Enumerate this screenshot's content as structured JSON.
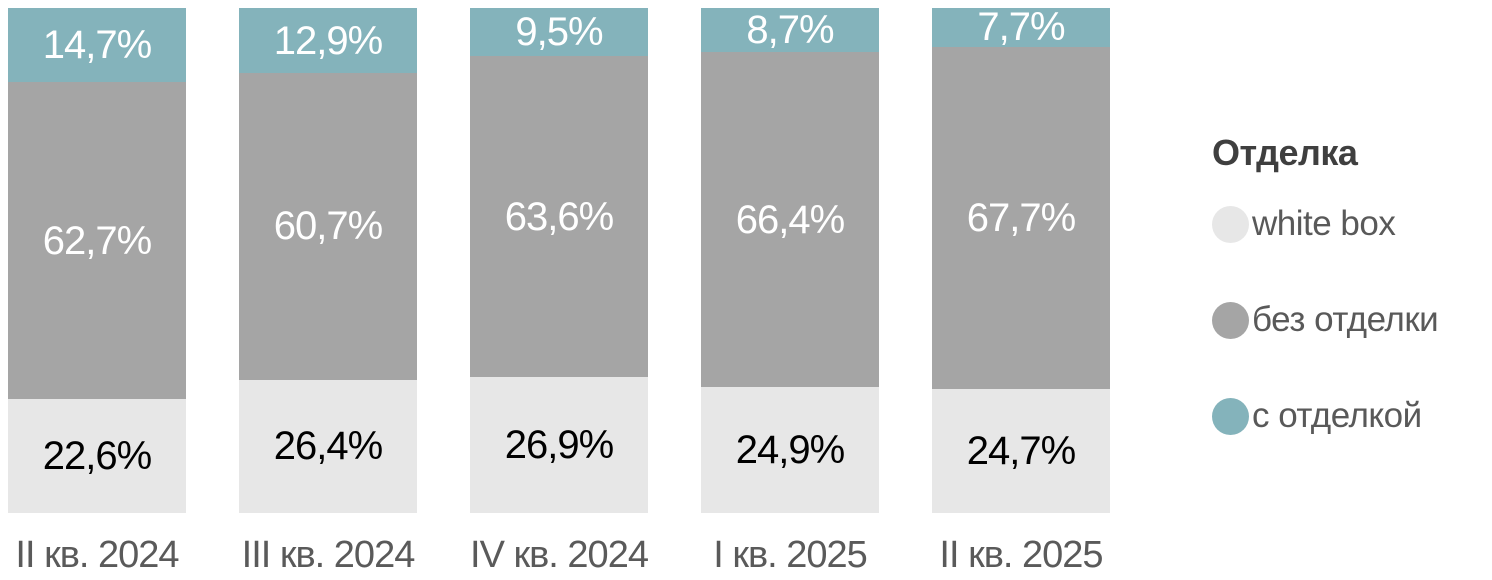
{
  "chart_data": {
    "type": "bar",
    "variant": "stacked-100",
    "orientation": "vertical",
    "background": "#FFFFFF",
    "categories": [
      "II кв. 2024",
      "III кв. 2024",
      "IV кв. 2024",
      "I кв. 2025",
      "II кв. 2025"
    ],
    "series": [
      {
        "name": "white box",
        "key": "white-box",
        "color": "#E7E7E7",
        "label_color": "#000000",
        "values": [
          22.6,
          26.4,
          26.9,
          24.9,
          24.7
        ],
        "labels": [
          "22,6%",
          "26,4%",
          "26,9%",
          "24,9%",
          "24,7%"
        ]
      },
      {
        "name": "без отделки",
        "key": "bez-otdelki",
        "color": "#A5A5A5",
        "label_color": "#FFFFFF",
        "values": [
          62.7,
          60.7,
          63.6,
          66.4,
          67.7
        ],
        "labels": [
          "62,7%",
          "60,7%",
          "63,6%",
          "66,4%",
          "67,7%"
        ]
      },
      {
        "name": "с отделкой",
        "key": "s-otdelkoy",
        "color": "#84B3BB",
        "label_color": "#FFFFFF",
        "values": [
          14.7,
          12.9,
          9.5,
          8.7,
          7.7
        ],
        "labels": [
          "14,7%",
          "12,9%",
          "9,5%",
          "8,7%",
          "7,7%"
        ]
      }
    ],
    "stack_order_top_to_bottom": [
      "с отделкой",
      "без отделки",
      "white box"
    ],
    "legend": {
      "title": "Отделка",
      "position": "right",
      "entries": [
        "white box",
        "без отделки",
        "с отделкой"
      ]
    },
    "ylim": [
      0,
      100
    ],
    "grid": false,
    "axis_label_color": "#5A5A5A"
  }
}
